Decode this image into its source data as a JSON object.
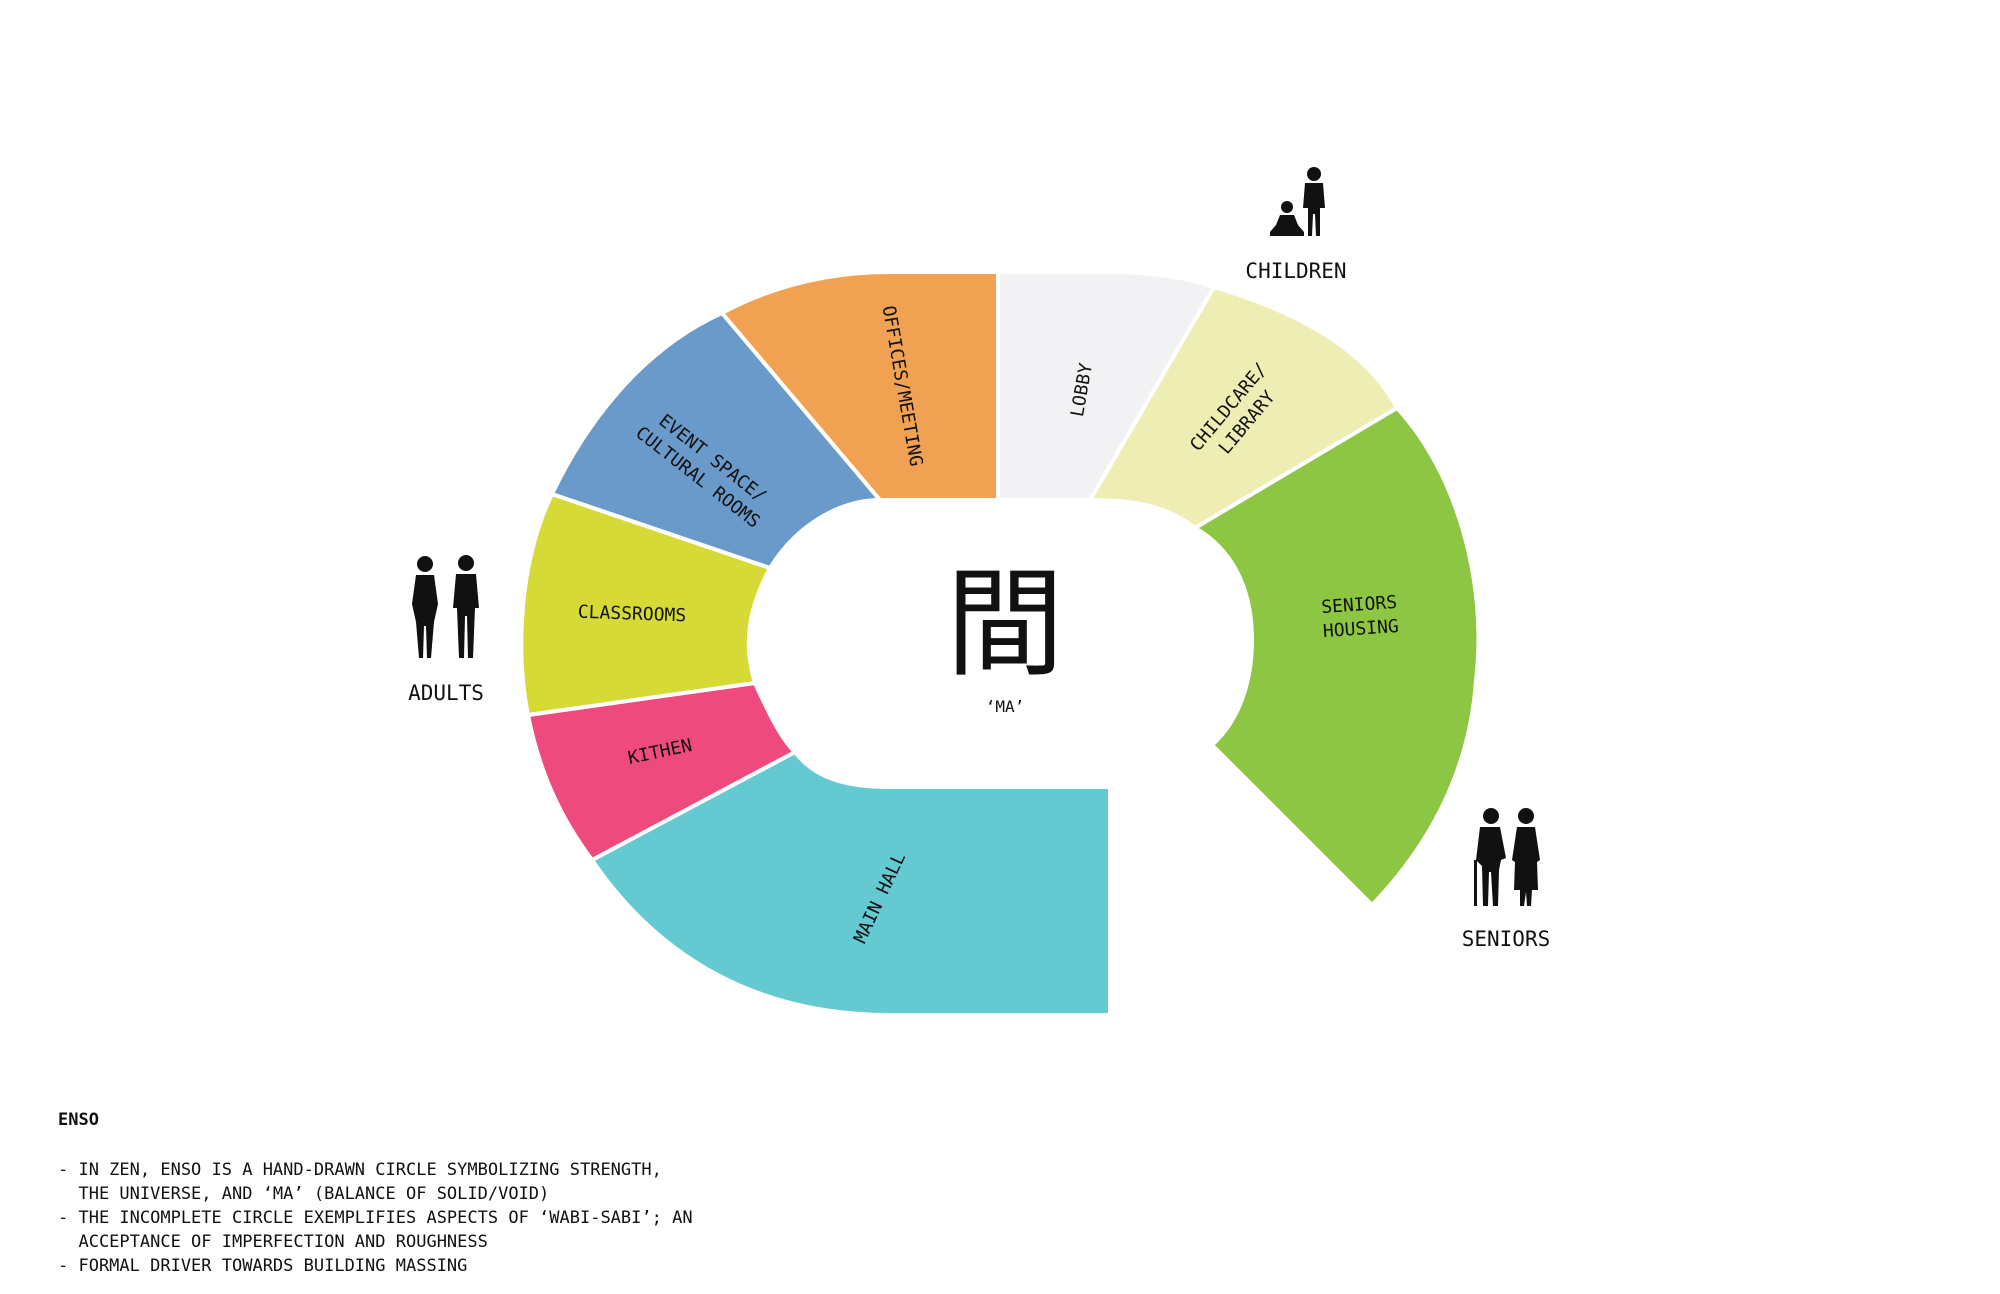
{
  "diagram": {
    "segments": [
      {
        "id": "main-hall",
        "lines": [
          "MAIN HALL"
        ],
        "color": "#65c9d1"
      },
      {
        "id": "kitchen",
        "lines": [
          "KITHEN"
        ],
        "color": "#ef4a7e"
      },
      {
        "id": "classrooms",
        "lines": [
          "CLASSROOMS"
        ],
        "color": "#d5da36"
      },
      {
        "id": "event-space",
        "lines": [
          "EVENT SPACE/",
          "CULTURAL ROOMS"
        ],
        "color": "#6a9ac9"
      },
      {
        "id": "offices",
        "lines": [
          "OFFICES/MEETING"
        ],
        "color": "#f0a252"
      },
      {
        "id": "lobby",
        "lines": [
          "LOBBY"
        ],
        "color": "#f2f2f4"
      },
      {
        "id": "childcare",
        "lines": [
          "CHILDCARE/",
          "LIBRARY"
        ],
        "color": "#eeeeb4"
      },
      {
        "id": "seniors-housing",
        "lines": [
          "SENIORS",
          "HOUSING"
        ],
        "color": "#8dc642"
      }
    ],
    "center": {
      "character": "間",
      "caption": "‘MA’"
    },
    "groups": {
      "children": "CHILDREN",
      "adults": "ADULTS",
      "seniors": "SENIORS"
    }
  },
  "notes": {
    "title": "ENSO",
    "lines": [
      "- IN ZEN, ENSO IS A HAND-DRAWN CIRCLE SYMBOLIZING STRENGTH,",
      "  THE UNIVERSE, AND ‘MA’ (BALANCE OF SOLID/VOID)",
      "- THE INCOMPLETE CIRCLE EXEMPLIFIES ASPECTS OF ‘WABI-SABI’; AN",
      "  ACCEPTANCE OF IMPERFECTION AND ROUGHNESS",
      "- FORMAL DRIVER TOWARDS BUILDING MASSING"
    ]
  }
}
